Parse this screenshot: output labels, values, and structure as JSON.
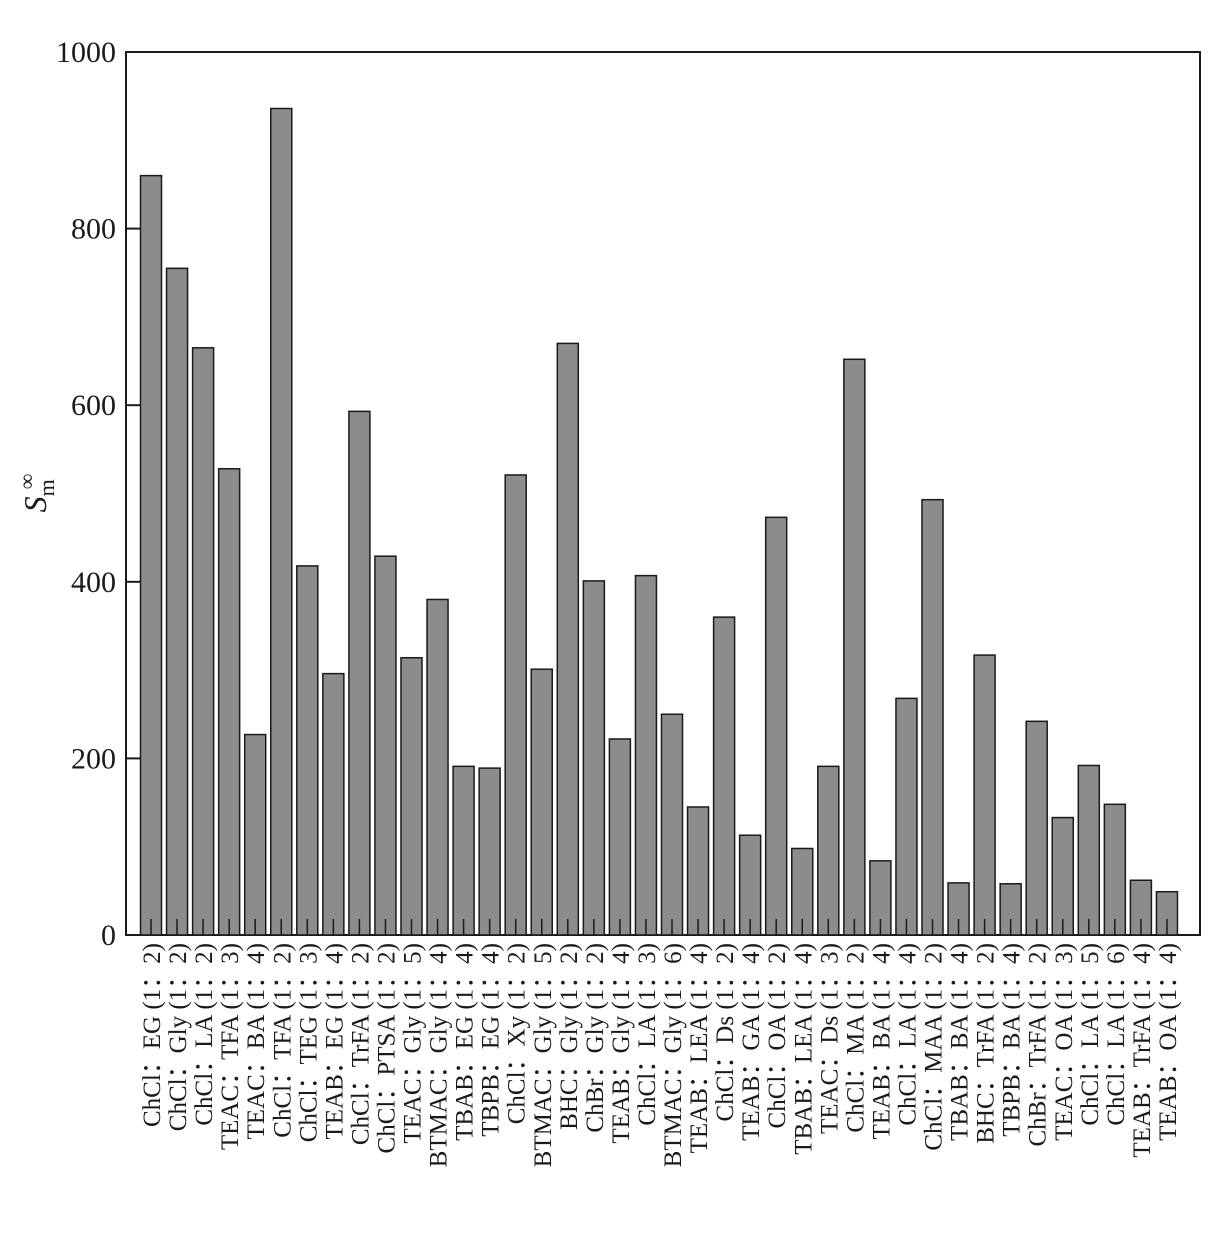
{
  "chart_data": {
    "type": "bar",
    "ylabel": "S",
    "ylabel_subscript": "m",
    "ylabel_superscript": "∞",
    "xlabel": "",
    "title": "",
    "ylim": [
      0,
      1000
    ],
    "yticks": [
      0,
      200,
      400,
      600,
      800,
      1000
    ],
    "grid": false,
    "bar_color": "#8c8c8c",
    "categories": [
      "ChCl：EG (1：2)",
      "ChCl：Gly (1：2)",
      "ChCl：LA (1：2)",
      "TEAC：TFA (1：3)",
      "TEAC：BA (1：4)",
      "ChCl：TFA (1：2)",
      "ChCl：TEG (1：3)",
      "TEAB：EG (1：4)",
      "ChCl：TrFA (1：2)",
      "ChCl：PTSA (1：2)",
      "TEAC：Gly (1：5)",
      "BTMAC：Gly (1：4)",
      "TBAB：EG (1：4)",
      "TBPB：EG (1：4)",
      "ChCl：Xy (1：2)",
      "BTMAC：Gly (1：5)",
      "BHC：Gly (1：2)",
      "ChBr：Gly (1：2)",
      "TEAB：Gly (1：4)",
      "ChCl：LA (1：3)",
      "BTMAC：Gly (1：6)",
      "TEAB：LEA (1：4)",
      "ChCl：Ds (1：2)",
      "TEAB：GA (1：4)",
      "ChCl：OA (1：2)",
      "TBAB：LEA (1：4)",
      "TEAC：Ds (1：3)",
      "ChCl：MA (1：2)",
      "TEAB：BA (1：4)",
      "ChCl：LA (1：4)",
      "ChCl：MAA (1：2)",
      "TBAB：BA (1：4)",
      "BHC：TrFA (1：2)",
      "TBPB：BA (1：4)",
      "ChBr：TrFA (1：2)",
      "TEAC：OA (1：3)",
      "ChCl：LA (1：5)",
      "ChCl：LA (1：6)",
      "TEAB：TrFA (1：4)",
      "TEAB：OA (1：4)"
    ],
    "values": [
      860,
      755,
      665,
      528,
      227,
      936,
      418,
      296,
      593,
      429,
      314,
      380,
      191,
      189,
      521,
      301,
      670,
      401,
      222,
      407,
      250,
      145,
      360,
      113,
      473,
      98,
      191,
      652,
      84,
      268,
      493,
      59,
      317,
      58,
      242,
      133,
      192,
      148,
      62,
      49
    ]
  }
}
